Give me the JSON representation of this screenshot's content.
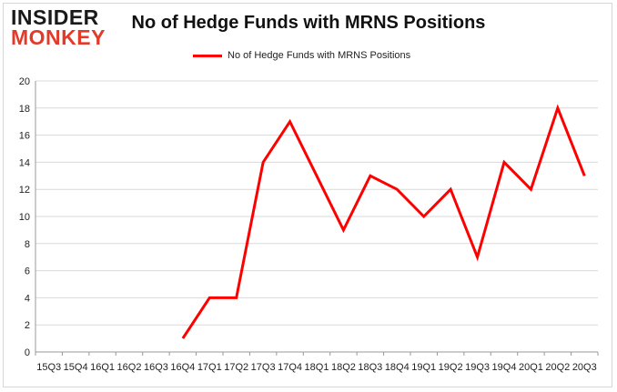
{
  "logo": {
    "line1": "INSIDER",
    "line2": "MONKEY"
  },
  "colors": {
    "series": "#ff0000",
    "grid": "#d9d9d9",
    "axis": "#999999"
  },
  "chart_data": {
    "type": "line",
    "title": "No of Hedge Funds with MRNS Positions",
    "xlabel": "",
    "ylabel": "",
    "legend_position": "top-center",
    "grid": true,
    "ylim": [
      0,
      20
    ],
    "yticks": [
      0,
      2,
      4,
      6,
      8,
      10,
      12,
      14,
      16,
      18,
      20
    ],
    "categories": [
      "15Q3",
      "15Q4",
      "16Q1",
      "16Q2",
      "16Q3",
      "16Q4",
      "17Q1",
      "17Q2",
      "17Q3",
      "17Q4",
      "18Q1",
      "18Q2",
      "18Q3",
      "18Q4",
      "19Q1",
      "19Q2",
      "19Q3",
      "19Q4",
      "20Q1",
      "20Q2",
      "20Q3"
    ],
    "series": [
      {
        "name": "No of Hedge Funds with MRNS Positions",
        "values": [
          null,
          null,
          null,
          null,
          null,
          1,
          4,
          4,
          14,
          17,
          13,
          9,
          13,
          12,
          10,
          12,
          7,
          14,
          12,
          18,
          13
        ]
      }
    ]
  }
}
